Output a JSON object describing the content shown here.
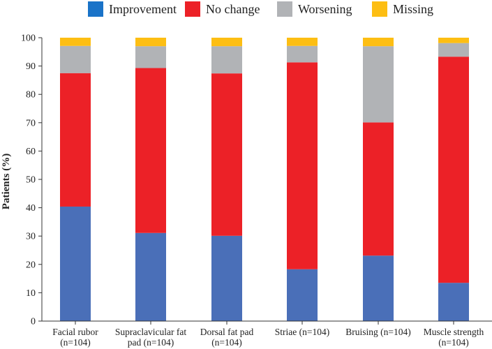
{
  "chart_data": {
    "type": "bar",
    "stacked": true,
    "title": "",
    "xlabel": "",
    "ylabel": "Patients (%)",
    "ylim": [
      0,
      100
    ],
    "yticks": [
      0,
      10,
      20,
      30,
      40,
      50,
      60,
      70,
      80,
      90,
      100
    ],
    "categories": [
      [
        "Facial rubor",
        "(n=104)"
      ],
      [
        "Supraclavicular fat",
        "pad (n=104)"
      ],
      [
        "Dorsal fat pad",
        "(n=104)"
      ],
      [
        "Striae (n=104)"
      ],
      [
        "Bruising (n=104)"
      ],
      [
        "Muscle strength",
        "(n=104)"
      ]
    ],
    "series": [
      {
        "name": "Improvement",
        "color": "#4a6fb8",
        "legend_color": "#1a73c8",
        "values": [
          40.4,
          31.1,
          30.1,
          18.3,
          23.1,
          13.5
        ]
      },
      {
        "name": "No change",
        "color": "#ec2127",
        "legend_color": "#ec2127",
        "values": [
          47.1,
          58.2,
          57.3,
          73.0,
          47.0,
          79.8
        ]
      },
      {
        "name": "Worsening",
        "color": "#b1b3b6",
        "legend_color": "#b1b3b6",
        "values": [
          9.6,
          7.7,
          9.6,
          5.8,
          26.9,
          4.8
        ]
      },
      {
        "name": "Missing",
        "color": "#fdbe13",
        "legend_color": "#fdbe13",
        "values": [
          2.9,
          3.0,
          3.0,
          2.9,
          3.0,
          1.9
        ]
      }
    ],
    "legend_position": "top"
  }
}
